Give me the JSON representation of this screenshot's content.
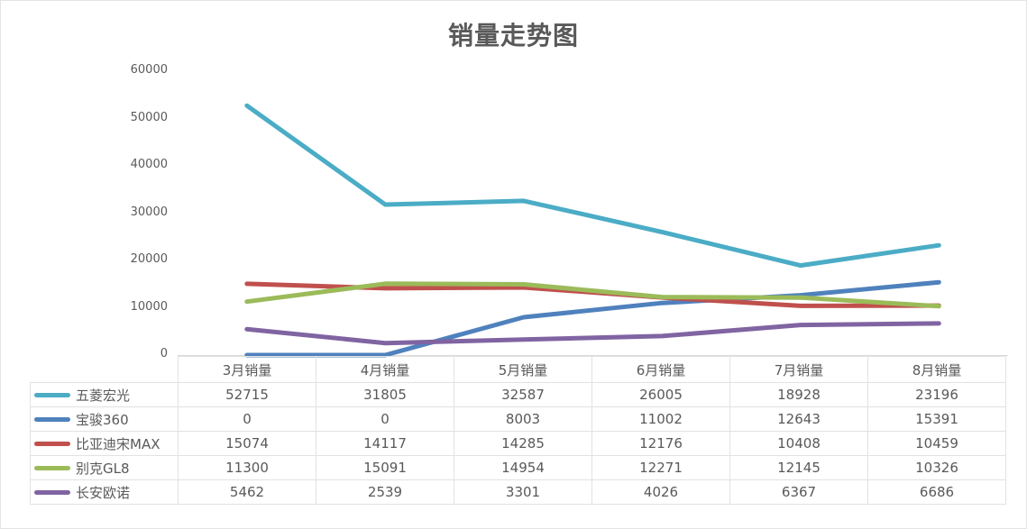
{
  "chart_data": {
    "type": "line",
    "title": "销量走势图",
    "xlabel": "",
    "ylabel": "",
    "ylim": [
      0,
      60000
    ],
    "yticks": [
      "0",
      "10000",
      "20000",
      "30000",
      "40000",
      "50000",
      "60000"
    ],
    "grid": false,
    "legend_position": "data-table-left",
    "categories": [
      "3月销量",
      "4月销量",
      "5月销量",
      "6月销量",
      "7月销量",
      "8月销量"
    ],
    "series": [
      {
        "name": "五菱宏光",
        "color": "#4bacc6",
        "values": [
          "52715",
          "31805",
          "32587",
          "26005",
          "18928",
          "23196"
        ]
      },
      {
        "name": "宝骏360",
        "color": "#4f81bd",
        "values": [
          "0",
          "0",
          "8003",
          "11002",
          "12643",
          "15391"
        ]
      },
      {
        "name": "比亚迪宋MAX",
        "color": "#c0504d",
        "values": [
          "15074",
          "14117",
          "14285",
          "12176",
          "10408",
          "10459"
        ]
      },
      {
        "name": "别克GL8",
        "color": "#9bbb59",
        "values": [
          "11300",
          "15091",
          "14954",
          "12271",
          "12145",
          "10326"
        ]
      },
      {
        "name": "长安欧诺",
        "color": "#8064a2",
        "values": [
          "5462",
          "2539",
          "3301",
          "4026",
          "6367",
          "6686"
        ]
      }
    ]
  }
}
